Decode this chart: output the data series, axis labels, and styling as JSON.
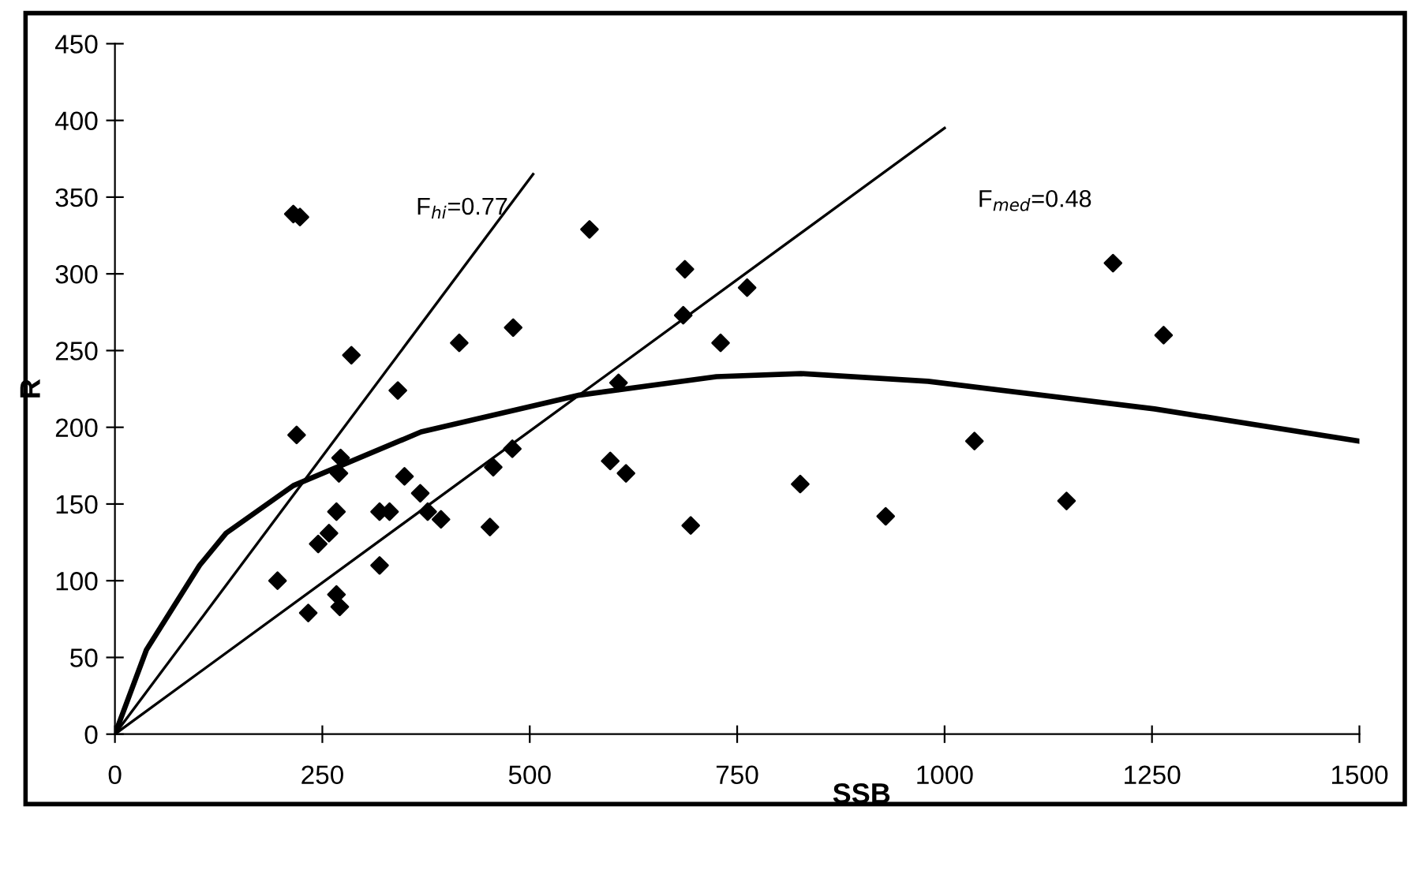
{
  "chart_data": {
    "type": "scatter",
    "xlabel": "SSB",
    "ylabel": "R",
    "xlim": [
      0,
      1500
    ],
    "ylim": [
      0,
      450
    ],
    "xticks": [
      0,
      250,
      500,
      750,
      1000,
      1250,
      1500
    ],
    "yticks": [
      0,
      50,
      100,
      150,
      200,
      250,
      300,
      350,
      400,
      450
    ],
    "grid": false,
    "legend": false,
    "series": [
      {
        "color": "#000000",
        "marker": "diamond",
        "x": [
          215,
          223,
          285,
          219,
          341,
          272,
          270,
          267,
          245,
          258,
          196,
          233,
          267,
          271,
          319,
          331,
          319,
          349,
          368,
          377,
          393,
          415,
          480,
          452,
          456,
          479,
          572,
          597,
          616,
          607,
          687,
          685,
          694,
          730,
          762,
          826,
          929,
          1036,
          1147,
          1203,
          1264
        ],
        "values": [
          339,
          337,
          247,
          195,
          224,
          180,
          170,
          145,
          124,
          131,
          100,
          79,
          91,
          83,
          145,
          145,
          110,
          168,
          157,
          145,
          140,
          255,
          265,
          135,
          174,
          186,
          329,
          178,
          170,
          229,
          303,
          273,
          136,
          255,
          291,
          163,
          142,
          191,
          152,
          307,
          260
        ]
      },
      {
        "type": "line",
        "color": "#000000",
        "marker": "none",
        "line_style": "solid",
        "x": [
          0,
          38,
          102,
          134,
          215,
          369,
          560,
          725,
          827,
          980,
          1253,
          1500
        ],
        "values": [
          0,
          55,
          110,
          131,
          162,
          197,
          221,
          233,
          235,
          230,
          212,
          191
        ]
      },
      {
        "type": "line",
        "color": "#000000",
        "marker": "none",
        "line_style": "solid",
        "name": "F$_{hi}$=0.77",
        "x": [
          0,
          504
        ],
        "values": [
          0,
          365
        ]
      },
      {
        "type": "line",
        "color": "#000000",
        "marker": "none",
        "line_style": "solid",
        "name": "F$_{med}$=0.48",
        "x": [
          0,
          1000
        ],
        "values": [
          0,
          395
        ]
      }
    ]
  }
}
